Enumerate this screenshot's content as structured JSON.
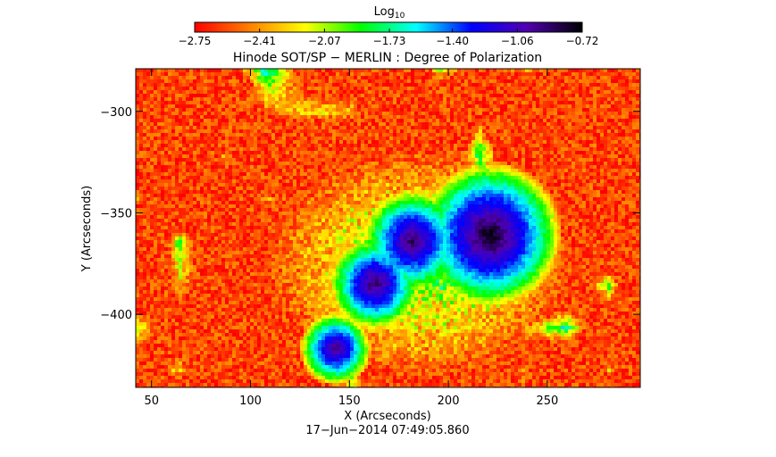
{
  "chart_data": {
    "type": "heatmap",
    "title": "Hinode SOT/SP − MERLIN : Degree of Polarization",
    "xlabel": "X (Arcseconds)",
    "ylabel": "Y (Arcseconds)",
    "timestamp": "17−Jun−2014 07:49:05.860",
    "xlim": [
      42,
      297
    ],
    "ylim": [
      -436,
      -279
    ],
    "x_ticks": [
      50,
      100,
      150,
      200,
      250
    ],
    "x_tick_labels": [
      "50",
      "100",
      "150",
      "200",
      "250"
    ],
    "y_ticks": [
      -300,
      -350,
      -400
    ],
    "y_tick_labels": [
      "−300",
      "−350",
      "−400"
    ],
    "colorbar": {
      "label": "Log",
      "label_subscript": "10",
      "range": [
        -2.75,
        -0.72
      ],
      "tick_values": [
        -2.75,
        -2.41,
        -2.07,
        -1.73,
        -1.4,
        -1.06,
        -0.72
      ],
      "tick_labels": [
        "−2.75",
        "−2.41",
        "−2.07",
        "−1.73",
        "−1.40",
        "−1.06",
        "−0.72"
      ],
      "colormap": [
        "#ff0000",
        "#ff8000",
        "#ffff00",
        "#00ff00",
        "#00ffff",
        "#0000ff",
        "#5000b0",
        "#000000"
      ]
    },
    "features": [
      {
        "x": 221,
        "y": -361,
        "r": 14,
        "peak": -0.72
      },
      {
        "x": 182,
        "y": -364,
        "r": 10,
        "peak": -0.85
      },
      {
        "x": 163,
        "y": -385,
        "r": 9,
        "peak": -0.85
      },
      {
        "x": 143,
        "y": -417,
        "r": 7,
        "peak": -0.9
      }
    ],
    "background_level": -2.6
  }
}
